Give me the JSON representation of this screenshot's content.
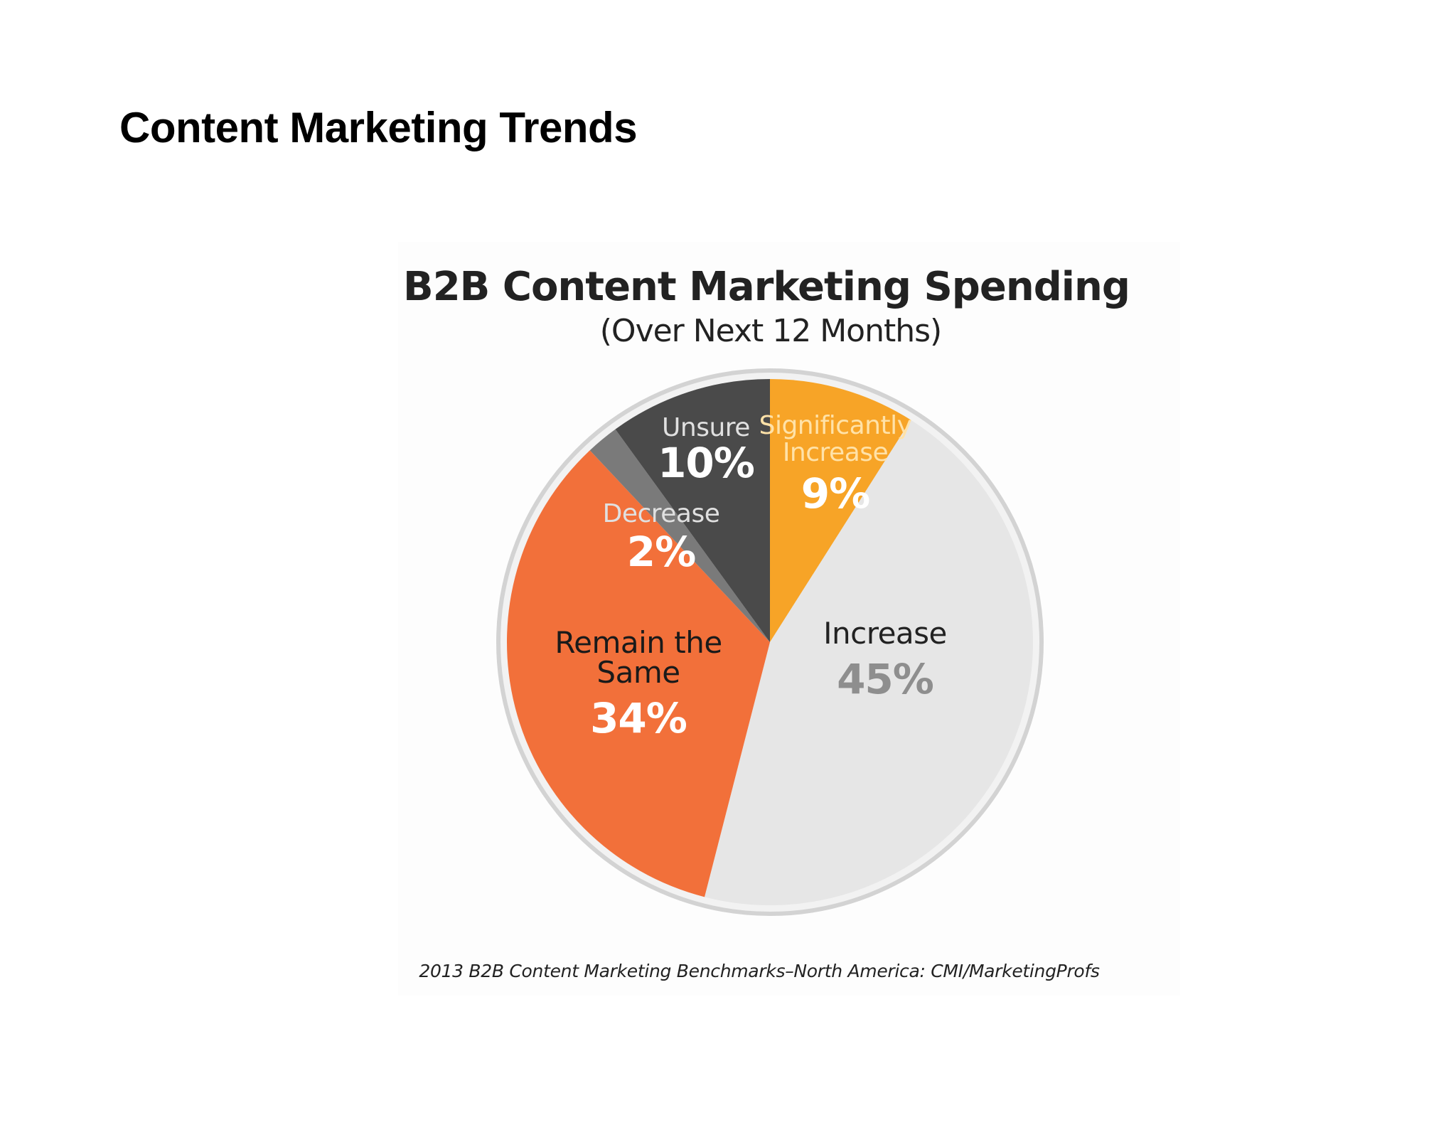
{
  "page": {
    "title": "Content Marketing Trends"
  },
  "chart_data": {
    "type": "pie",
    "title": "B2B Content Marketing Spending",
    "subtitle": "(Over Next 12 Months)",
    "source": "2013 B2B Content Marketing Benchmarks–North America: CMI/MarketingProfs",
    "start": "12 o'clock",
    "direction": "clockwise",
    "legend": "none (labels inside slices)",
    "slices": [
      {
        "label_lines": [
          "Significantly",
          "Increase"
        ],
        "value": 9,
        "value_text": "9%",
        "color": "#F7A427",
        "label_color": "#FFE2A8",
        "value_color": "#FFFFFF"
      },
      {
        "label_lines": [
          "Increase"
        ],
        "value": 45,
        "value_text": "45%",
        "color": "#E6E6E6",
        "label_color": "#222222",
        "value_color": "#8E8E8E"
      },
      {
        "label_lines": [
          "Remain the",
          "Same"
        ],
        "value": 34,
        "value_text": "34%",
        "color": "#F2703A",
        "label_color": "#1A1A1A",
        "value_color": "#FFFFFF"
      },
      {
        "label_lines": [
          "Decrease"
        ],
        "value": 2,
        "value_text": "2%",
        "color": "#7A7A7A",
        "label_color": "#E0E0E0",
        "value_color": "#FFFFFF"
      },
      {
        "label_lines": [
          "Unsure"
        ],
        "value": 10,
        "value_text": "10%",
        "color": "#4A4A4A",
        "label_color": "#E0E0E0",
        "value_color": "#FFFFFF"
      }
    ]
  }
}
